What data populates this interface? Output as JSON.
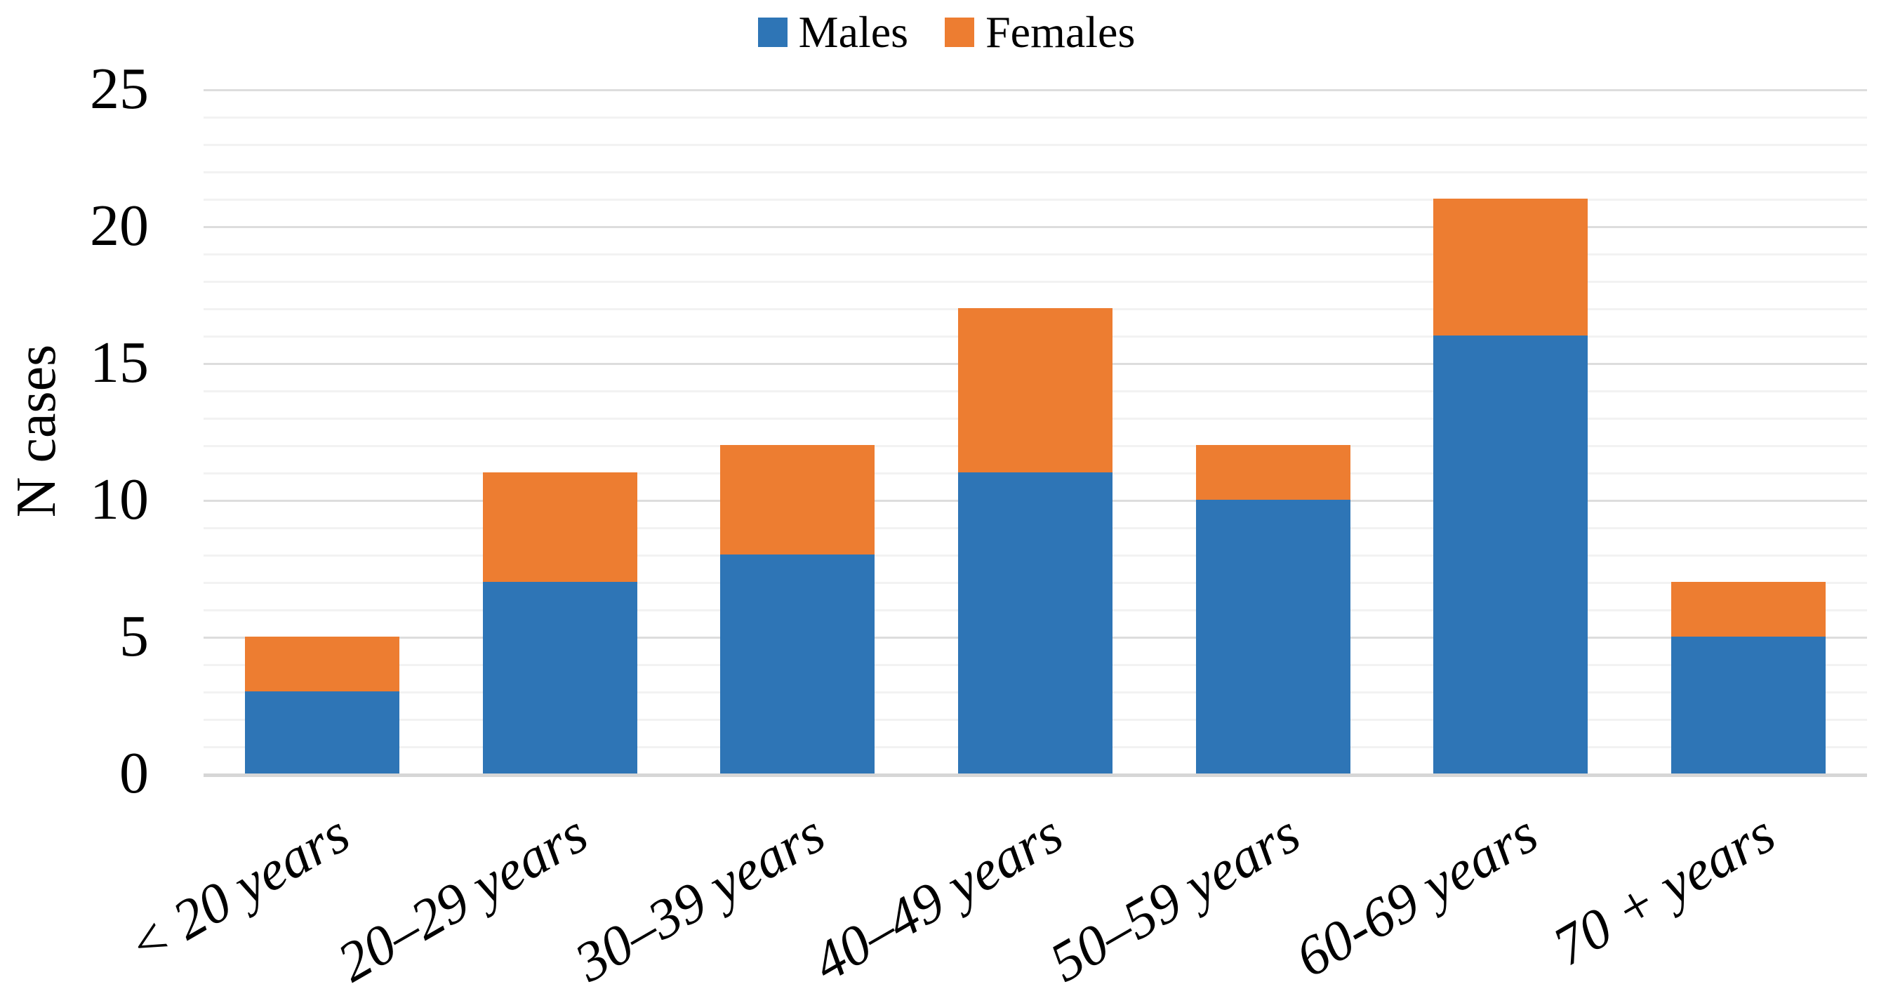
{
  "chart_data": {
    "type": "bar",
    "stacked": true,
    "title": "",
    "ylabel": "N cases",
    "xlabel": "",
    "categories": [
      "< 20 years",
      "20–29 years",
      "30–39 years",
      "40–49 years",
      "50–59 years",
      "60-69 years",
      "70 + years"
    ],
    "series": [
      {
        "name": "Males",
        "color": "#2E75B6",
        "values": [
          3,
          7,
          8,
          11,
          10,
          16,
          5
        ]
      },
      {
        "name": "Females",
        "color": "#ED7D31",
        "values": [
          2,
          4,
          4,
          6,
          2,
          5,
          2
        ]
      }
    ],
    "totals": [
      5,
      11,
      12,
      17,
      12,
      21,
      7
    ],
    "y_axis": {
      "min": 0,
      "max": 25,
      "major_step": 5,
      "minor_step": 1,
      "ticks": [
        0,
        5,
        10,
        15,
        20,
        25
      ]
    },
    "legend_position": "top-center",
    "grid": {
      "major_on": true,
      "minor_on": true,
      "major_color": "#dddddd",
      "minor_color": "#f2f2f2",
      "baseline_color": "#d6d6d6"
    },
    "background": "#ffffff",
    "text_color": "#000000"
  }
}
